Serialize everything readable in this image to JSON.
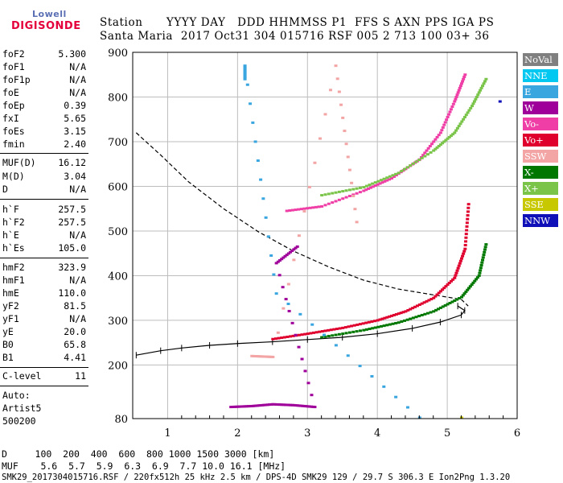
{
  "logo": {
    "top": "Lowell",
    "bottom": "DIGISONDE"
  },
  "header": {
    "line1": "Station      YYYY DAY   DDD HHMMSS P1  FFS S AXN PPS IGA PS",
    "line2": "Santa Maria  2017 Oct31 304 015716 RSF 005 2 713 100 03+ 36"
  },
  "params": [
    {
      "k": "foF2",
      "v": "5.300"
    },
    {
      "k": "foF1",
      "v": "N/A"
    },
    {
      "k": "foF1p",
      "v": "N/A"
    },
    {
      "k": "foE",
      "v": "N/A"
    },
    {
      "k": "foEp",
      "v": "0.39"
    },
    {
      "k": "fxI",
      "v": "5.65"
    },
    {
      "k": "foEs",
      "v": "3.15"
    },
    {
      "k": "fmin",
      "v": "2.40"
    },
    {
      "k": "MUF(D)",
      "v": "16.12"
    },
    {
      "k": "M(D)",
      "v": "3.04"
    },
    {
      "k": "D",
      "v": "N/A"
    },
    {
      "k": "h`F",
      "v": "257.5"
    },
    {
      "k": "h`F2",
      "v": "257.5"
    },
    {
      "k": "h`E",
      "v": "N/A"
    },
    {
      "k": "h`Es",
      "v": "105.0"
    },
    {
      "k": "hmF2",
      "v": "323.9"
    },
    {
      "k": "hmF1",
      "v": "N/A"
    },
    {
      "k": "hmE",
      "v": "110.0"
    },
    {
      "k": "yF2",
      "v": "81.5"
    },
    {
      "k": "yF1",
      "v": "N/A"
    },
    {
      "k": "yE",
      "v": "20.0"
    },
    {
      "k": "B0",
      "v": "65.8"
    },
    {
      "k": "B1",
      "v": "4.41"
    },
    {
      "k": "C-level",
      "v": "11"
    }
  ],
  "auto": {
    "l1": "Auto:",
    "l2": "Artist5",
    "l3": "500200"
  },
  "footer": {
    "d_line": "D     100  200  400  600  800 1000 1500 3000 [km]",
    "muf_line": "MUF    5.6  5.7  5.9  6.3  6.9  7.7 10.0 16.1 [MHz]",
    "file_line": "SMK29_2017304015716.RSF / 220fx512h 25 kHz 2.5 km / DPS-4D SMK29 129 / 29.7 S 306.3 E Ion2Png 1.3.20"
  },
  "legend": [
    {
      "label": "NoVal",
      "color": "#808080"
    },
    {
      "label": "NNE",
      "color": "#00c8f0"
    },
    {
      "label": "E",
      "color": "#3aa6e0"
    },
    {
      "label": "W",
      "color": "#a0009a"
    },
    {
      "label": "Vo-",
      "color": "#ef3fa6"
    },
    {
      "label": "Vo+",
      "color": "#e0002e"
    },
    {
      "label": "SSW",
      "color": "#f3a5a5"
    },
    {
      "label": "X-",
      "color": "#007800"
    },
    {
      "label": "X+",
      "color": "#7ac44a"
    },
    {
      "label": "SSE",
      "color": "#c8c800"
    },
    {
      "label": "NNW",
      "color": "#1010b8"
    }
  ],
  "chart_data": {
    "type": "scatter",
    "xlim": [
      0.5,
      6.0
    ],
    "ylim": [
      80,
      900
    ],
    "x_ticks": [
      1,
      2,
      3,
      4,
      5,
      6
    ],
    "y_ticks": [
      80,
      200,
      300,
      400,
      500,
      600,
      700,
      800,
      900
    ],
    "grid": true,
    "series": [
      {
        "name": "Vo+",
        "color": "#e0002e",
        "values": [
          [
            2.5,
            258
          ],
          [
            3.0,
            270
          ],
          [
            3.5,
            283
          ],
          [
            4.0,
            300
          ],
          [
            4.4,
            320
          ],
          [
            4.8,
            350
          ],
          [
            5.1,
            395
          ],
          [
            5.25,
            460
          ],
          [
            5.3,
            560
          ]
        ]
      },
      {
        "name": "Vo-",
        "color": "#ef3fa6",
        "values": [
          [
            2.7,
            545
          ],
          [
            3.2,
            555
          ],
          [
            3.8,
            590
          ],
          [
            4.2,
            618
          ],
          [
            4.6,
            660
          ],
          [
            4.9,
            720
          ],
          [
            5.1,
            790
          ],
          [
            5.25,
            850
          ]
        ]
      },
      {
        "name": "X-",
        "color": "#007800",
        "values": [
          [
            3.2,
            262
          ],
          [
            3.8,
            278
          ],
          [
            4.3,
            295
          ],
          [
            4.8,
            320
          ],
          [
            5.2,
            352
          ],
          [
            5.45,
            400
          ],
          [
            5.55,
            470
          ]
        ]
      },
      {
        "name": "X+",
        "color": "#7ac44a",
        "values": [
          [
            3.2,
            580
          ],
          [
            3.8,
            598
          ],
          [
            4.3,
            630
          ],
          [
            4.8,
            680
          ],
          [
            5.1,
            720
          ],
          [
            5.35,
            780
          ],
          [
            5.55,
            840
          ]
        ]
      },
      {
        "name": "W",
        "color": "#a0009a",
        "values": [
          [
            1.9,
            106
          ],
          [
            2.2,
            108
          ],
          [
            2.5,
            112
          ],
          [
            2.8,
            110
          ],
          [
            3.1,
            106
          ],
          [
            2.55,
            428
          ],
          [
            2.85,
            465
          ]
        ]
      },
      {
        "name": "E",
        "color": "#3aa6e0",
        "values": [
          [
            2.1,
            840
          ],
          [
            2.1,
            870
          ],
          [
            2.55,
            360
          ],
          [
            4.6,
            82
          ]
        ]
      },
      {
        "name": "SSW",
        "color": "#f3a5a5",
        "values": [
          [
            2.2,
            220
          ],
          [
            2.5,
            218
          ],
          [
            3.4,
            870
          ],
          [
            3.7,
            520
          ]
        ]
      },
      {
        "name": "SSE",
        "color": "#c8c800",
        "values": [
          [
            5.2,
            82
          ]
        ]
      },
      {
        "name": "NNW",
        "color": "#1010b8",
        "values": [
          [
            5.75,
            790
          ]
        ]
      }
    ],
    "profile": [
      [
        0.55,
        222
      ],
      [
        0.9,
        232
      ],
      [
        1.2,
        238
      ],
      [
        1.6,
        244
      ],
      [
        2.0,
        248
      ],
      [
        2.5,
        252
      ],
      [
        3.0,
        257
      ],
      [
        3.5,
        262
      ],
      [
        4.0,
        270
      ],
      [
        4.5,
        282
      ],
      [
        4.9,
        296
      ],
      [
        5.2,
        312
      ],
      [
        5.25,
        322
      ],
      [
        5.15,
        332
      ]
    ],
    "dashed_profile": [
      [
        0.55,
        720
      ],
      [
        0.9,
        670
      ],
      [
        1.3,
        610
      ],
      [
        1.8,
        550
      ],
      [
        2.3,
        498
      ],
      [
        2.8,
        455
      ],
      [
        3.3,
        420
      ],
      [
        3.8,
        390
      ],
      [
        4.3,
        370
      ],
      [
        4.8,
        357
      ],
      [
        5.2,
        347
      ],
      [
        5.3,
        332
      ]
    ]
  }
}
